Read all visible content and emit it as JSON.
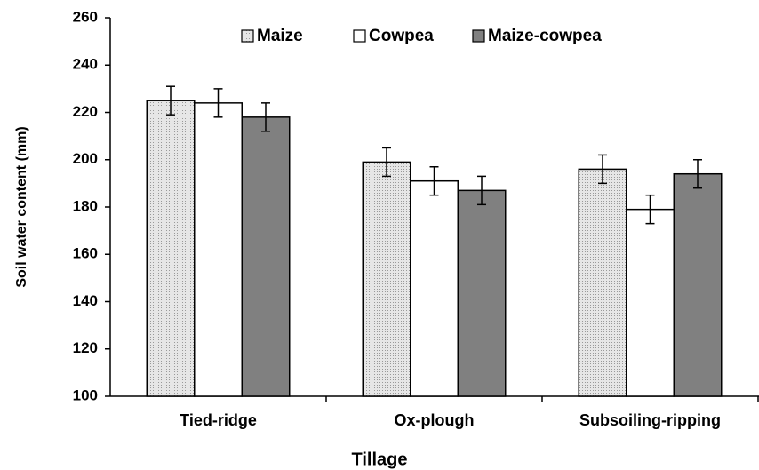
{
  "chart_data": {
    "type": "bar",
    "x_label": "Tillage",
    "y_label": "Soil  water content (mm)",
    "categories": [
      "Tied-ridge",
      "Ox-plough",
      "Subsoiling-ripping"
    ],
    "series": [
      {
        "name": "Maize",
        "color": "#d9d9d9",
        "values": [
          225,
          199,
          196
        ],
        "errors": [
          6,
          6,
          6
        ]
      },
      {
        "name": "Cowpea",
        "color": "#ffffff",
        "values": [
          224,
          191,
          179
        ],
        "errors": [
          6,
          6,
          6
        ]
      },
      {
        "name": "Maize-cowpea",
        "color": "#808080",
        "values": [
          218,
          187,
          194
        ],
        "errors": [
          6,
          6,
          6
        ]
      }
    ],
    "ylim": [
      100,
      260
    ],
    "yticks": [
      100,
      120,
      140,
      160,
      180,
      200,
      220,
      240,
      260
    ],
    "grid": false,
    "legend_position": "top"
  }
}
